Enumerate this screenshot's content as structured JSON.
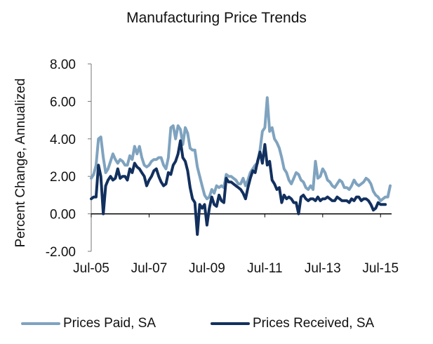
{
  "chart_data": {
    "type": "line",
    "title": "Manufacturing Price Trends",
    "xlabel": "",
    "ylabel": "Percent Change, Annualized",
    "ylim": [
      -2,
      8
    ],
    "yticks": [
      "8.00",
      "6.00",
      "4.00",
      "2.00",
      "0.00",
      "-2.00"
    ],
    "ytick_values": [
      8,
      6,
      4,
      2,
      0,
      -2
    ],
    "xticks": [
      "Jul-05",
      "Jul-07",
      "Jul-09",
      "Jul-11",
      "Jul-13",
      "Jul-15"
    ],
    "xtick_month_index": [
      0,
      24,
      48,
      72,
      96,
      120
    ],
    "x_start": "Jul-05",
    "x_end": "Jul-15",
    "frequency": "monthly",
    "grid": false,
    "legend_position": "bottom",
    "series": [
      {
        "name": "Prices Paid, SA",
        "color": "#7fa3bf",
        "values": [
          1.9,
          2.1,
          2.6,
          4.0,
          4.1,
          3.0,
          2.2,
          2.4,
          2.8,
          3.2,
          2.9,
          2.7,
          2.9,
          2.8,
          2.6,
          2.6,
          3.1,
          2.9,
          3.6,
          3.2,
          3.6,
          3.0,
          2.6,
          2.5,
          2.6,
          2.8,
          2.9,
          2.9,
          3.0,
          3.0,
          2.6,
          2.4,
          3.0,
          4.6,
          4.7,
          4.0,
          4.7,
          4.5,
          3.7,
          4.6,
          4.3,
          3.5,
          3.4,
          3.4,
          2.5,
          2.0,
          1.5,
          1.0,
          0.8,
          0.9,
          1.3,
          1.1,
          1.5,
          1.4,
          1.5,
          1.4,
          2.1,
          2.0,
          2.0,
          1.9,
          1.8,
          1.6,
          1.6,
          1.9,
          1.5,
          1.8,
          2.2,
          2.4,
          2.6,
          2.7,
          3.4,
          4.4,
          4.6,
          6.2,
          4.4,
          4.6,
          4.0,
          3.8,
          3.5,
          3.0,
          2.4,
          2.2,
          1.8,
          1.6,
          1.9,
          2.2,
          2.1,
          1.8,
          1.7,
          1.4,
          1.3,
          1.5,
          1.3,
          2.8,
          1.9,
          2.0,
          2.4,
          2.2,
          1.8,
          1.7,
          1.5,
          1.4,
          1.6,
          1.8,
          1.7,
          1.4,
          1.4,
          1.3,
          1.5,
          1.8,
          1.6,
          1.5,
          1.6,
          1.7,
          1.9,
          1.8,
          1.6,
          1.2,
          1.0,
          0.9,
          0.7,
          0.8,
          0.9,
          0.9,
          1.5
        ]
      },
      {
        "name": "Prices Received, SA",
        "color": "#12305e",
        "values": [
          0.8,
          0.9,
          0.9,
          2.6,
          2.0,
          0.0,
          1.5,
          1.8,
          2.0,
          1.8,
          1.9,
          2.4,
          1.9,
          2.0,
          2.0,
          1.8,
          2.4,
          2.2,
          2.7,
          2.5,
          2.4,
          2.2,
          2.0,
          1.5,
          1.8,
          2.0,
          2.3,
          2.4,
          2.0,
          1.7,
          1.5,
          1.6,
          2.2,
          2.1,
          2.6,
          2.8,
          3.2,
          3.9,
          3.0,
          2.8,
          2.3,
          1.4,
          0.8,
          0.6,
          -1.1,
          0.5,
          0.3,
          0.5,
          -0.6,
          0.3,
          0.9,
          0.5,
          0.4,
          1.0,
          0.7,
          0.6,
          1.9,
          1.7,
          1.7,
          1.6,
          1.5,
          1.4,
          1.3,
          1.1,
          0.8,
          1.4,
          1.9,
          2.3,
          2.2,
          2.8,
          3.3,
          2.7,
          3.7,
          2.6,
          2.8,
          1.8,
          1.6,
          1.3,
          1.4,
          0.6,
          1.0,
          0.8,
          0.9,
          0.8,
          0.6,
          0.6,
          0.0,
          0.9,
          1.0,
          0.8,
          0.7,
          0.8,
          0.8,
          0.7,
          0.9,
          0.7,
          0.8,
          0.8,
          0.9,
          0.8,
          0.7,
          0.7,
          0.9,
          0.8,
          0.7,
          0.7,
          0.7,
          0.6,
          0.8,
          0.7,
          0.9,
          0.9,
          0.7,
          0.8,
          0.8,
          0.7,
          0.5,
          0.2,
          0.3,
          0.6,
          0.5,
          0.5,
          0.5
        ]
      }
    ]
  }
}
